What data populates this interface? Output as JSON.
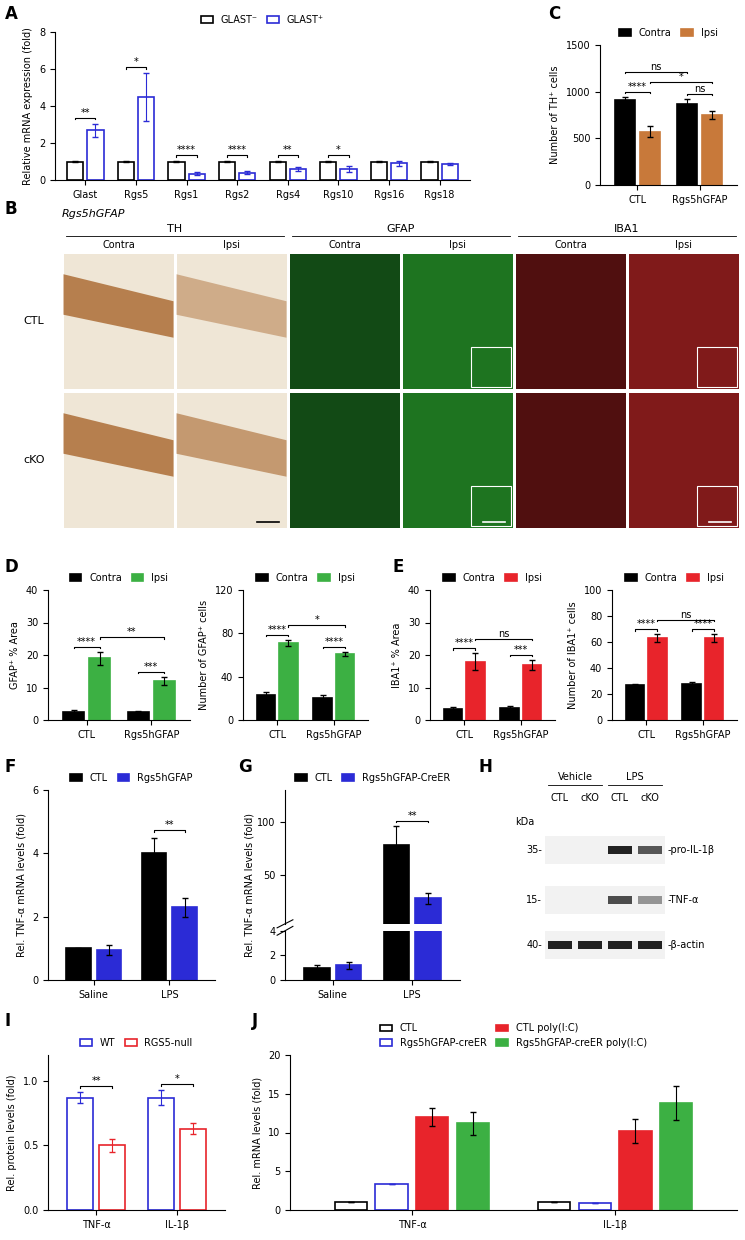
{
  "panel_labels": [
    "A",
    "B",
    "C",
    "D",
    "E",
    "F",
    "G",
    "H",
    "I",
    "J"
  ],
  "chart_data": [
    {
      "type": "bar",
      "y_label": "Relative mRNA expression (fold)",
      "categories": [
        "Glast",
        "Rgs5",
        "Rgs1",
        "Rgs2",
        "Rgs4",
        "Rgs10",
        "Rgs16",
        "Rgs18"
      ],
      "series": [
        {
          "name": "GLAST⁻",
          "color": "#000000",
          "values": [
            1,
            1,
            1,
            1,
            1,
            1,
            1,
            1
          ],
          "errors": [
            0.03,
            0.03,
            0.03,
            0.03,
            0.03,
            0.03,
            0.03,
            0.03
          ]
        },
        {
          "name": "GLAST⁺",
          "color": "#2b2bd6",
          "values": [
            2.7,
            4.5,
            0.35,
            0.4,
            0.6,
            0.6,
            0.9,
            0.85
          ],
          "errors": [
            0.35,
            1.3,
            0.08,
            0.08,
            0.12,
            0.15,
            0.12,
            0.06
          ]
        }
      ],
      "ylim": [
        0,
        8
      ],
      "yticks": [
        0,
        2,
        4,
        6,
        8
      ],
      "legend": "upper center",
      "annotations": [
        {
          "text": "**",
          "from": [
            "Glast",
            "GLAST⁻"
          ],
          "to": [
            "Glast",
            "GLAST⁺"
          ]
        },
        {
          "text": "*",
          "from": [
            "Rgs5",
            "GLAST⁻"
          ],
          "to": [
            "Rgs5",
            "GLAST⁺"
          ]
        },
        {
          "text": "****",
          "from": [
            "Rgs1",
            "GLAST⁻"
          ],
          "to": [
            "Rgs1",
            "GLAST⁺"
          ]
        },
        {
          "text": "****",
          "from": [
            "Rgs2",
            "GLAST⁻"
          ],
          "to": [
            "Rgs2",
            "GLAST⁺"
          ]
        },
        {
          "text": "**",
          "from": [
            "Rgs4",
            "GLAST⁻"
          ],
          "to": [
            "Rgs4",
            "GLAST⁺"
          ]
        },
        {
          "text": "*",
          "from": [
            "Rgs10",
            "GLAST⁻"
          ],
          "to": [
            "Rgs10",
            "GLAST⁺"
          ]
        }
      ]
    },
    {
      "type": "bar",
      "y_label": "Number of TH⁺ cells",
      "categories": [
        "CTL",
        "Rgs5hGFAP"
      ],
      "series": [
        {
          "name": "Contra",
          "color": "#000000",
          "values": [
            910,
            870
          ],
          "errors": [
            30,
            50
          ]
        },
        {
          "name": "Ipsi",
          "color": "#c8793a",
          "values": [
            570,
            750
          ],
          "errors": [
            60,
            40
          ]
        }
      ],
      "ylim": [
        0,
        1500
      ],
      "yticks": [
        0,
        500,
        1000,
        1500
      ],
      "legend": "upper center",
      "annotations": [
        {
          "text": "****",
          "from": [
            "CTL",
            "Contra"
          ],
          "to": [
            "CTL",
            "Ipsi"
          ]
        },
        {
          "text": "ns",
          "from": [
            "Rgs5hGFAP",
            "Contra"
          ],
          "to": [
            "Rgs5hGFAP",
            "Ipsi"
          ]
        },
        {
          "text": "*",
          "from": [
            "CTL",
            "Ipsi"
          ],
          "to": [
            "Rgs5hGFAP",
            "Ipsi"
          ]
        },
        {
          "text": "ns",
          "from": [
            "CTL",
            "Contra"
          ],
          "to": [
            "Rgs5hGFAP",
            "Contra"
          ]
        }
      ]
    },
    {
      "type": "bar",
      "y_label": "GFAP⁺ % Area",
      "categories": [
        "CTL",
        "Rgs5hGFAP"
      ],
      "series": [
        {
          "name": "Contra",
          "color": "#000000",
          "values": [
            2.5,
            2.5
          ],
          "errors": [
            0.5,
            0.3
          ]
        },
        {
          "name": "Ipsi",
          "color": "#3cb043",
          "values": [
            19,
            12
          ],
          "errors": [
            2,
            1.2
          ]
        }
      ],
      "ylim": [
        0,
        40
      ],
      "yticks": [
        0,
        10,
        20,
        30,
        40
      ],
      "legend": "upper center",
      "annotations": [
        {
          "text": "****",
          "from": [
            "CTL",
            "Contra"
          ],
          "to": [
            "CTL",
            "Ipsi"
          ]
        },
        {
          "text": "***",
          "from": [
            "Rgs5hGFAP",
            "Contra"
          ],
          "to": [
            "Rgs5hGFAP",
            "Ipsi"
          ]
        },
        {
          "text": "**",
          "from": [
            "CTL",
            "Ipsi"
          ],
          "to": [
            "Rgs5hGFAP",
            "Ipsi"
          ]
        }
      ]
    },
    {
      "type": "bar",
      "y_label": "Number of GFAP⁺ cells",
      "categories": [
        "CTL",
        "Rgs5hGFAP"
      ],
      "series": [
        {
          "name": "Contra",
          "color": "#000000",
          "values": [
            23,
            20
          ],
          "errors": [
            3,
            3
          ]
        },
        {
          "name": "Ipsi",
          "color": "#3cb043",
          "values": [
            71,
            61
          ],
          "errors": [
            3,
            2
          ]
        }
      ],
      "ylim": [
        0,
        120
      ],
      "yticks": [
        0,
        40,
        80,
        120
      ],
      "legend": "upper center",
      "annotations": [
        {
          "text": "****",
          "from": [
            "CTL",
            "Contra"
          ],
          "to": [
            "CTL",
            "Ipsi"
          ]
        },
        {
          "text": "****",
          "from": [
            "Rgs5hGFAP",
            "Contra"
          ],
          "to": [
            "Rgs5hGFAP",
            "Ipsi"
          ]
        },
        {
          "text": "*",
          "from": [
            "CTL",
            "Ipsi"
          ],
          "to": [
            "Rgs5hGFAP",
            "Ipsi"
          ]
        }
      ]
    },
    {
      "type": "bar",
      "y_label": "IBA1⁺ % Area",
      "categories": [
        "CTL",
        "Rgs5hGFAP"
      ],
      "series": [
        {
          "name": "Contra",
          "color": "#000000",
          "values": [
            3.5,
            3.8
          ],
          "errors": [
            0.5,
            0.4
          ]
        },
        {
          "name": "Ipsi",
          "color": "#e8242b",
          "values": [
            18,
            17
          ],
          "errors": [
            2.5,
            1.5
          ]
        }
      ],
      "ylim": [
        0,
        40
      ],
      "yticks": [
        0,
        10,
        20,
        30,
        40
      ],
      "legend": "upper center",
      "annotations": [
        {
          "text": "****",
          "from": [
            "CTL",
            "Contra"
          ],
          "to": [
            "CTL",
            "Ipsi"
          ]
        },
        {
          "text": "***",
          "from": [
            "Rgs5hGFAP",
            "Contra"
          ],
          "to": [
            "Rgs5hGFAP",
            "Ipsi"
          ]
        },
        {
          "text": "ns",
          "from": [
            "CTL",
            "Ipsi"
          ],
          "to": [
            "Rgs5hGFAP",
            "Ipsi"
          ]
        }
      ]
    },
    {
      "type": "bar",
      "y_label": "Number of IBA1⁺ cells",
      "categories": [
        "CTL",
        "Rgs5hGFAP"
      ],
      "series": [
        {
          "name": "Contra",
          "color": "#000000",
          "values": [
            27,
            28
          ],
          "errors": [
            1,
            1
          ]
        },
        {
          "name": "Ipsi",
          "color": "#e8242b",
          "values": [
            63,
            63
          ],
          "errors": [
            3,
            3
          ]
        }
      ],
      "ylim": [
        0,
        100
      ],
      "yticks": [
        0,
        20,
        40,
        60,
        80,
        100
      ],
      "legend": "upper center",
      "annotations": [
        {
          "text": "****",
          "from": [
            "CTL",
            "Contra"
          ],
          "to": [
            "CTL",
            "Ipsi"
          ]
        },
        {
          "text": "****",
          "from": [
            "Rgs5hGFAP",
            "Contra"
          ],
          "to": [
            "Rgs5hGFAP",
            "Ipsi"
          ]
        },
        {
          "text": "ns",
          "from": [
            "CTL",
            "Ipsi"
          ],
          "to": [
            "Rgs5hGFAP",
            "Ipsi"
          ]
        }
      ]
    },
    {
      "type": "bar",
      "y_label": "Rel. TNF-α mRNA levels (fold)",
      "categories": [
        "Saline",
        "LPS"
      ],
      "series": [
        {
          "name": "CTL",
          "color": "#000000",
          "values": [
            1.0,
            4.0
          ],
          "errors": [
            0.02,
            0.5
          ]
        },
        {
          "name": "Rgs5hGFAP",
          "color": "#2b2bd6",
          "values": [
            0.95,
            2.3
          ],
          "errors": [
            0.15,
            0.3
          ]
        }
      ],
      "ylim": [
        0,
        6
      ],
      "yticks": [
        0,
        2,
        4,
        6
      ],
      "legend": "upper center",
      "annotations": [
        {
          "text": "**",
          "from": [
            "LPS",
            "CTL"
          ],
          "to": [
            "LPS",
            "Rgs5hGFAP"
          ]
        }
      ]
    },
    {
      "type": "bar",
      "y_label": "Rel. TNF-α mRNA levels (fold)",
      "categories": [
        "Saline",
        "LPS"
      ],
      "series": [
        {
          "name": "CTL",
          "color": "#000000",
          "values": [
            1.0,
            78
          ],
          "errors": [
            0.2,
            18
          ]
        },
        {
          "name": "Rgs5hGFAP-CreER",
          "color": "#2b2bd6",
          "values": [
            1.2,
            28
          ],
          "errors": [
            0.3,
            5
          ]
        }
      ],
      "ylim": [
        0,
        130
      ],
      "yticks": [
        0,
        2,
        4,
        50,
        100
      ],
      "legend": "upper center",
      "annotations": [
        {
          "text": "**",
          "from": [
            "LPS",
            "CTL"
          ],
          "to": [
            "LPS",
            "Rgs5hGFAP-CreER"
          ]
        }
      ]
    },
    {
      "type": "bar",
      "y_label": "Rel. protein levels (fold)",
      "categories": [
        "TNF-α",
        "IL-1β"
      ],
      "series": [
        {
          "name": "WT",
          "color": "#2b2bd6",
          "values": [
            0.87,
            0.87
          ],
          "errors": [
            0.04,
            0.06
          ]
        },
        {
          "name": "RGS5-null",
          "color": "#e8242b",
          "values": [
            0.5,
            0.63
          ],
          "errors": [
            0.05,
            0.04
          ]
        }
      ],
      "ylim": [
        0,
        1.2
      ],
      "yticks": [
        {
          "value": 0,
          "label": "0.0"
        },
        {
          "value": 0.5,
          "label": "0.5"
        },
        {
          "value": 1,
          "label": "1.0"
        }
      ],
      "legend": "upper center",
      "annotations": [
        {
          "text": "**",
          "from": [
            "TNF-α",
            "WT"
          ],
          "to": [
            "TNF-α",
            "RGS5-null"
          ]
        },
        {
          "text": "*",
          "from": [
            "IL-1β",
            "WT"
          ],
          "to": [
            "IL-1β",
            "RGS5-null"
          ]
        }
      ]
    },
    {
      "type": "bar",
      "y_label": "Rel. mRNA levels (fold)",
      "categories": [
        "TNF-α",
        "IL-1β"
      ],
      "series": [
        {
          "name": "CTL",
          "color": "#000000",
          "values": [
            1,
            1
          ],
          "errors": [
            0,
            0
          ]
        },
        {
          "name": "Rgs5hGFAP-creER",
          "color": "#2b2bd6",
          "values": [
            3.3,
            0.9
          ],
          "errors": [
            0,
            0
          ]
        },
        {
          "name": "CTL poly(I:C)",
          "color": "#e8242b",
          "values": [
            12,
            10.2
          ],
          "errors": [
            1.2,
            1.5
          ]
        },
        {
          "name": "Rgs5hGFAP-creER poly(I:C)",
          "color": "#3cb043",
          "values": [
            11.2,
            13.8
          ],
          "errors": [
            1.5,
            2.2
          ]
        }
      ],
      "ylim": [
        0,
        20
      ],
      "yticks": [
        0,
        5,
        10,
        15,
        20
      ],
      "legend": "upper center"
    }
  ],
  "image_panels": {
    "micrographs": {
      "title": "Rgs5hGFAP",
      "stains": [
        "TH",
        "GFAP",
        "IBA1"
      ],
      "sides": [
        "Contra",
        "Ipsi"
      ],
      "rows": [
        "CTL",
        "cKO"
      ]
    },
    "western_blot": {
      "groups": [
        {
          "label": "Vehicle",
          "lanes": [
            "CTL",
            "cKO"
          ]
        },
        {
          "label": "LPS",
          "lanes": [
            "CTL",
            "cKO"
          ]
        }
      ],
      "unit": "kDa",
      "bands": [
        {
          "size": "35-",
          "label": "-pro-IL-1β"
        },
        {
          "size": "15-",
          "label": "-TNF-α"
        },
        {
          "size": "40-",
          "label": "-β-actin"
        }
      ]
    }
  }
}
